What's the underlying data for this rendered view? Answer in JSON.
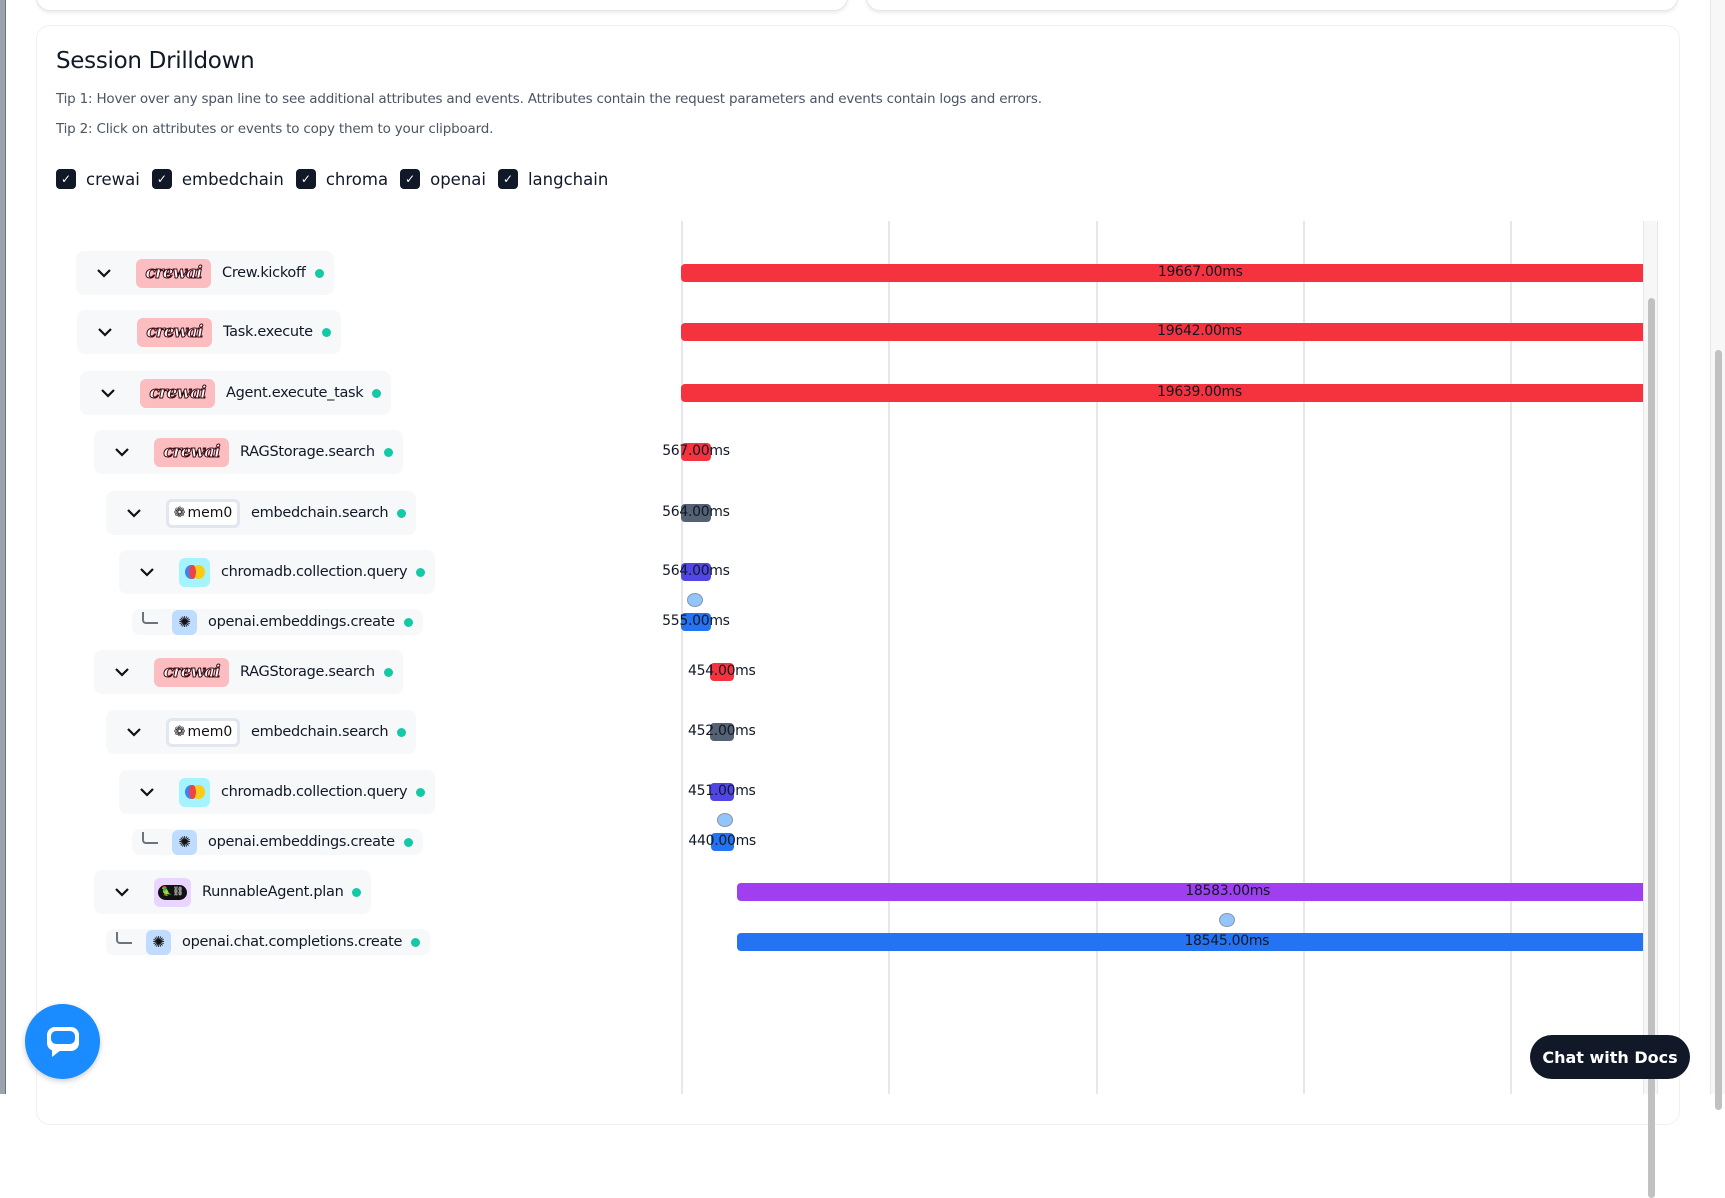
{
  "header": {
    "title": "Session Drilldown",
    "tip1": "Tip 1: Hover over any span line to see additional attributes and events. Attributes contain the request parameters and events contain logs and errors.",
    "tip2": "Tip 2: Click on attributes or events to copy them to your clipboard."
  },
  "filters": [
    {
      "label": "crewai",
      "checked": true
    },
    {
      "label": "embedchain",
      "checked": true
    },
    {
      "label": "chroma",
      "checked": true
    },
    {
      "label": "openai",
      "checked": true
    },
    {
      "label": "langchain",
      "checked": true
    }
  ],
  "colors": {
    "crewai": "#f5333f",
    "embedchain": "#556274",
    "chroma": "#5046e5",
    "openai": "#2473f2",
    "langchain": "#a03ff0",
    "status_ok": "#14c9a5"
  },
  "logos": {
    "crewai": "crewai",
    "mem0": "mem0"
  },
  "spans": [
    {
      "name": "Crew.kickoff",
      "vendor": "crewai",
      "depth": 0,
      "expandable": true,
      "start_ms": 0,
      "duration_ms": 19667,
      "duration_label": "19667.00ms",
      "event": false
    },
    {
      "name": "Task.execute",
      "vendor": "crewai",
      "depth": 0,
      "expandable": true,
      "start_ms": 0,
      "duration_ms": 19642,
      "duration_label": "19642.00ms",
      "event": false
    },
    {
      "name": "Agent.execute_task",
      "vendor": "crewai",
      "depth": 0,
      "expandable": true,
      "start_ms": 0,
      "duration_ms": 19639,
      "duration_label": "19639.00ms",
      "event": false
    },
    {
      "name": "RAGStorage.search",
      "vendor": "crewai",
      "depth": 1,
      "expandable": true,
      "start_ms": 0,
      "duration_ms": 567,
      "duration_label": "567.00ms",
      "event": false
    },
    {
      "name": "embedchain.search",
      "vendor": "embedchain",
      "depth": 2,
      "expandable": true,
      "start_ms": 0,
      "duration_ms": 564,
      "duration_label": "564.00ms",
      "event": false
    },
    {
      "name": "chromadb.collection.query",
      "vendor": "chroma",
      "depth": 3,
      "expandable": true,
      "start_ms": 0,
      "duration_ms": 564,
      "duration_label": "564.00ms",
      "event": false
    },
    {
      "name": "openai.embeddings.create",
      "vendor": "openai",
      "depth": 4,
      "expandable": false,
      "start_ms": 5,
      "duration_ms": 555,
      "duration_label": "555.00ms",
      "event": true
    },
    {
      "name": "RAGStorage.search",
      "vendor": "crewai",
      "depth": 1,
      "expandable": true,
      "start_ms": 545,
      "duration_ms": 454,
      "duration_label": "454.00ms",
      "event": false
    },
    {
      "name": "embedchain.search",
      "vendor": "embedchain",
      "depth": 2,
      "expandable": true,
      "start_ms": 546,
      "duration_ms": 452,
      "duration_label": "452.00ms",
      "event": false
    },
    {
      "name": "chromadb.collection.query",
      "vendor": "chroma",
      "depth": 3,
      "expandable": true,
      "start_ms": 547,
      "duration_ms": 451,
      "duration_label": "451.00ms",
      "event": false
    },
    {
      "name": "openai.embeddings.create",
      "vendor": "openai",
      "depth": 4,
      "expandable": false,
      "start_ms": 560,
      "duration_ms": 440,
      "duration_label": "440.00ms",
      "event": true
    },
    {
      "name": "RunnableAgent.plan",
      "vendor": "langchain",
      "depth": 1,
      "expandable": true,
      "start_ms": 1062,
      "duration_ms": 18583,
      "duration_label": "18583.00ms",
      "event": false
    },
    {
      "name": "openai.chat.completions.create",
      "vendor": "openai",
      "depth": 2,
      "expandable": false,
      "start_ms": 1065,
      "duration_ms": 18545,
      "duration_label": "18545.00ms",
      "event": true
    }
  ],
  "chat_with_docs": "Chat with Docs"
}
